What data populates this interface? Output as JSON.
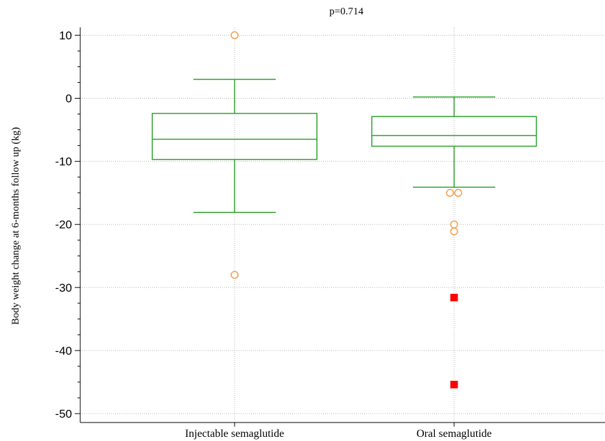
{
  "chart_data": {
    "type": "box",
    "title": "p=0.714",
    "ylabel": "Body weight change at 6-months follow up (kg)",
    "xlabel": "",
    "ylim": [
      -52,
      12
    ],
    "yticks": [
      10,
      0,
      -10,
      -20,
      -30,
      -40,
      -50
    ],
    "grid": true,
    "categories": [
      "Injectable semaglutide",
      "Oral semaglutide"
    ],
    "boxes": [
      {
        "name": "Injectable semaglutide",
        "whisker_high": 3.0,
        "q3": -2.4,
        "median": -6.5,
        "q1": -9.7,
        "whisker_low": -18.1,
        "outliers": [
          10.0,
          -28.0
        ],
        "far_outliers": []
      },
      {
        "name": "Oral semaglutide",
        "whisker_high": 0.2,
        "q3": -2.9,
        "median": -5.9,
        "q1": -7.6,
        "whisker_low": -14.1,
        "outliers": [
          -15.0,
          -15.0,
          -20.0,
          -21.1
        ],
        "far_outliers": [
          -31.6,
          -45.4
        ]
      }
    ],
    "colors": {
      "box": "#2ca02c",
      "outlier": "#f39c4a",
      "far_outlier": "#ff0000",
      "grid": "#b0b0b0",
      "axis": "#000000"
    }
  }
}
